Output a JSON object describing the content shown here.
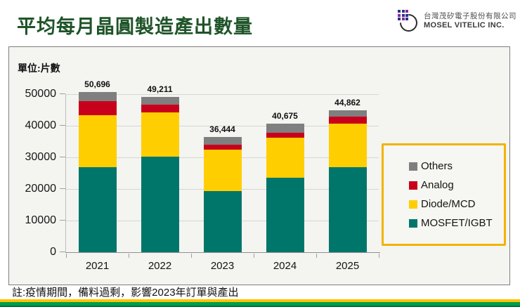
{
  "header": {
    "title": "平均每月晶圓製造產出數量",
    "company_zh": "台灣茂矽電子股份有限公司",
    "company_en": "MOSEL VITELIC INC."
  },
  "chart": {
    "unit_label": "單位:片數"
  },
  "chart_data": {
    "type": "bar",
    "stacked": true,
    "title": "平均每月晶圓製造產出數量",
    "xlabel": "",
    "ylabel": "單位:片數",
    "categories": [
      "2021",
      "2022",
      "2023",
      "2024",
      "2025"
    ],
    "series": [
      {
        "name": "MOSFET/IGBT",
        "color": "#00766B",
        "values": [
          26800,
          30300,
          19300,
          23500,
          27000
        ]
      },
      {
        "name": "Diode/MCD",
        "color": "#FFCE00",
        "values": [
          16600,
          13900,
          13200,
          12800,
          13700
        ]
      },
      {
        "name": "Analog",
        "color": "#C9001B",
        "values": [
          4400,
          2400,
          1550,
          1550,
          2200
        ]
      },
      {
        "name": "Others",
        "color": "#7F7F7F",
        "values": [
          2896,
          2611,
          2394,
          2825,
          1962
        ]
      }
    ],
    "totals": [
      50696,
      49211,
      36444,
      40675,
      44862
    ],
    "total_labels": [
      "50,696",
      "49,211",
      "36,444",
      "40,675",
      "44,862"
    ],
    "ylim": [
      0,
      50000
    ],
    "ytick_step": 10000,
    "ytick_labels": [
      "0",
      "10000",
      "20000",
      "30000",
      "40000",
      "50000"
    ],
    "grid": true,
    "legend_position": "right-middle",
    "legend_order": [
      "Others",
      "Analog",
      "Diode/MCD",
      "MOSFET/IGBT"
    ]
  },
  "footnote": "註:疫情期間，備料過剩，影響2023年訂單與產出",
  "colors": {
    "title_green": "#1F5429",
    "panel_bg": "#F4F4F1",
    "gridline": "#D6D6D2",
    "legend_border": "#F0B400",
    "stripe_yellow": "#FFC200",
    "stripe_green": "#009F4A",
    "stripe_dark_green": "#007140",
    "logo_navy": "#2E3192",
    "logo_purple": "#92278F"
  }
}
